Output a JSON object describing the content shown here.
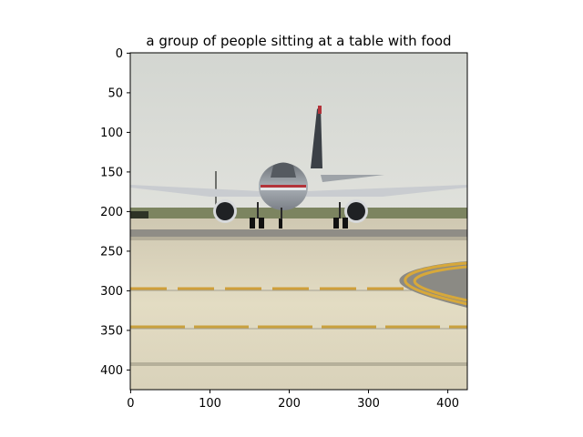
{
  "figure": {
    "title": "a group of people sitting at a table with food"
  },
  "axes": {
    "x_ticks": [
      "0",
      "100",
      "200",
      "300",
      "400"
    ],
    "y_ticks": [
      "0",
      "50",
      "100",
      "150",
      "200",
      "250",
      "300",
      "350",
      "400"
    ],
    "x_range": [
      0,
      427
    ],
    "y_range": [
      0,
      427
    ]
  },
  "image": {
    "description_icon": "photo-airplane-on-runway"
  },
  "colors": {
    "sky": "#d9dbd6",
    "tarmac_light": "#ddd6bd",
    "tarmac_dark": "#b7b19c",
    "runway_grey": "#8e8c85",
    "grass": "#6f7a55",
    "yellow_line": "#d8a838",
    "fuselage": "#9aa0a6",
    "engine": "#2d2f33",
    "red_stripe": "#b3333a",
    "axis": "#000000"
  }
}
